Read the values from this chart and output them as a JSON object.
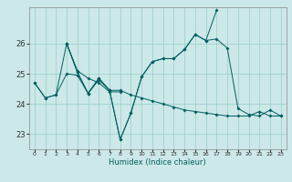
{
  "xlabel": "Humidex (Indice chaleur)",
  "background_color": "#cce8e8",
  "grid_color": "#99cccc",
  "line_color": "#005f5f",
  "xlim": [
    -0.5,
    23.5
  ],
  "ylim": [
    22.5,
    27.2
  ],
  "yticks": [
    23,
    24,
    25,
    26
  ],
  "xtick_labels": [
    "0",
    "1",
    "2",
    "3",
    "4",
    "5",
    "6",
    "7",
    "8",
    "9",
    "10",
    "11",
    "12",
    "13",
    "14",
    "15",
    "16",
    "17",
    "18",
    "19",
    "20",
    "21",
    "22",
    "23"
  ],
  "series": [
    {
      "x": [
        0,
        1,
        2,
        3,
        4,
        5,
        6,
        7,
        8
      ],
      "y": [
        24.7,
        24.2,
        24.3,
        26.0,
        25.1,
        24.85,
        24.7,
        24.4,
        24.4
      ]
    },
    {
      "x": [
        3,
        4,
        5,
        6,
        7,
        8,
        9,
        10,
        11,
        12,
        13,
        14,
        15,
        16,
        17
      ],
      "y": [
        26.0,
        25.05,
        24.35,
        24.85,
        24.45,
        22.82,
        23.7,
        24.9,
        25.4,
        25.5,
        25.5,
        25.8,
        26.3,
        26.1,
        27.1
      ]
    },
    {
      "x": [
        3,
        4,
        5,
        6,
        7,
        8,
        9,
        10,
        11,
        12,
        13,
        14,
        15,
        16,
        17,
        18,
        19,
        20,
        21,
        22,
        23
      ],
      "y": [
        26.0,
        25.05,
        24.35,
        24.85,
        24.45,
        22.82,
        23.7,
        24.9,
        25.4,
        25.5,
        25.5,
        25.8,
        26.3,
        26.1,
        26.15,
        25.85,
        23.85,
        23.65,
        23.6,
        23.8,
        23.6
      ]
    },
    {
      "x": [
        0,
        1,
        2,
        3,
        4,
        5,
        6,
        7,
        8,
        9,
        10,
        11,
        12,
        13,
        14,
        15,
        16,
        17,
        18,
        19,
        20,
        21,
        22,
        23
      ],
      "y": [
        24.7,
        24.2,
        24.3,
        25.0,
        24.95,
        24.35,
        24.8,
        24.45,
        24.45,
        24.3,
        24.2,
        24.1,
        24.0,
        23.9,
        23.8,
        23.75,
        23.7,
        23.65,
        23.6,
        23.6,
        23.6,
        23.75,
        23.6,
        23.6
      ]
    }
  ],
  "figsize": [
    3.2,
    2.0
  ],
  "dpi": 100
}
